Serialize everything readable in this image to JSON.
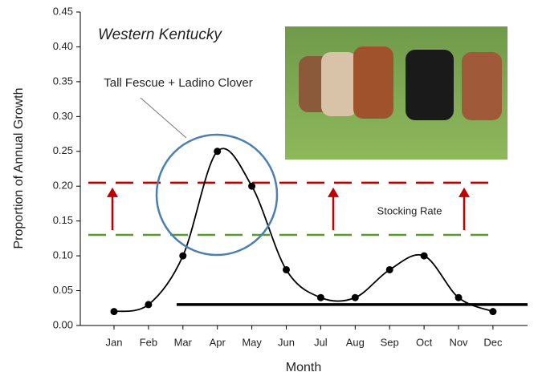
{
  "chart_data": {
    "type": "line",
    "title": "Western Kentucky",
    "annotations": [
      "Tall Fescue + Ladino Clover",
      "Stocking Rate"
    ],
    "x_label": "Month",
    "y_label": "Proportion of Annual Growth",
    "categories": [
      "Jan",
      "Feb",
      "Mar",
      "Apr",
      "May",
      "Jun",
      "Jul",
      "Aug",
      "Sep",
      "Oct",
      "Nov",
      "Dec"
    ],
    "values": [
      0.02,
      0.03,
      0.1,
      0.25,
      0.2,
      0.08,
      0.04,
      0.04,
      0.08,
      0.1,
      0.04,
      0.02
    ],
    "color": "#000000",
    "ylim": [
      0,
      0.45
    ],
    "yticks": [
      {
        "value": 0,
        "label": "0.00"
      },
      0.05,
      {
        "value": 0.1,
        "label": "0.10"
      },
      0.15,
      {
        "value": 0.2,
        "label": "0.20"
      },
      0.25,
      {
        "value": 0.3,
        "label": "0.30"
      },
      0.35,
      {
        "value": 0.4,
        "label": "0.40"
      },
      0.45
    ],
    "reference_lines": [
      {
        "value": 0.205,
        "color": "#c00000",
        "dashed": true
      },
      {
        "value": 0.13,
        "color": "#5a9a2a",
        "dashed": true
      },
      {
        "value": 0.03,
        "color": "#000000",
        "dashed": false
      }
    ]
  }
}
